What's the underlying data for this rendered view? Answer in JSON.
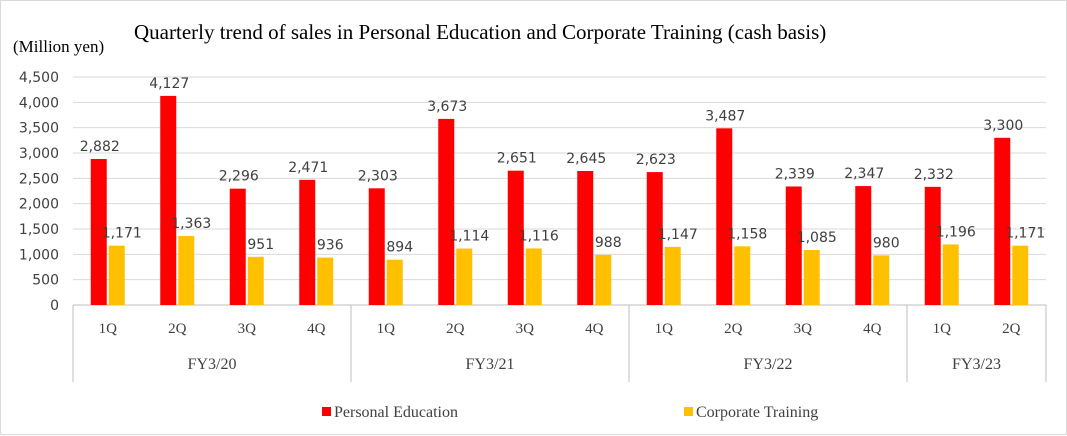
{
  "chart_data": {
    "type": "bar",
    "title": "Quarterly trend of sales in Personal Education and Corporate Training (cash basis)",
    "ylabel": "(Million yen)",
    "ylim": [
      0,
      4500
    ],
    "yticks": [
      "0",
      "500",
      "1,000",
      "1,500",
      "2,000",
      "2,500",
      "3,000",
      "3,500",
      "4,000",
      "4,500"
    ],
    "grid": true,
    "legend_position": "bottom",
    "groups": [
      {
        "label": "FY3/20",
        "quarters": [
          "1Q",
          "2Q",
          "3Q",
          "4Q"
        ]
      },
      {
        "label": "FY3/21",
        "quarters": [
          "1Q",
          "2Q",
          "3Q",
          "4Q"
        ]
      },
      {
        "label": "FY3/22",
        "quarters": [
          "1Q",
          "2Q",
          "3Q",
          "4Q"
        ]
      },
      {
        "label": "FY3/23",
        "quarters": [
          "1Q",
          "2Q"
        ]
      }
    ],
    "series": [
      {
        "name": "Personal Education",
        "color": "#ff0000",
        "values": [
          2882,
          4127,
          2296,
          2471,
          2303,
          3673,
          2651,
          2645,
          2623,
          3487,
          2339,
          2347,
          2332,
          3300
        ],
        "labels": [
          "2,882",
          "4,127",
          "2,296",
          "2,471",
          "2,303",
          "3,673",
          "2,651",
          "2,645",
          "2,623",
          "3,487",
          "2,339",
          "2,347",
          "2,332",
          "3,300"
        ]
      },
      {
        "name": "Corporate Training",
        "color": "#ffc000",
        "values": [
          1171,
          1363,
          951,
          936,
          894,
          1114,
          1116,
          988,
          1147,
          1158,
          1085,
          980,
          1196,
          1171
        ],
        "labels": [
          "1,171",
          "1,363",
          "951",
          "936",
          "894",
          "1,114",
          "1,116",
          "988",
          "1,147",
          "1,158",
          "1,085",
          "980",
          "1,196",
          "1,171"
        ]
      }
    ]
  }
}
